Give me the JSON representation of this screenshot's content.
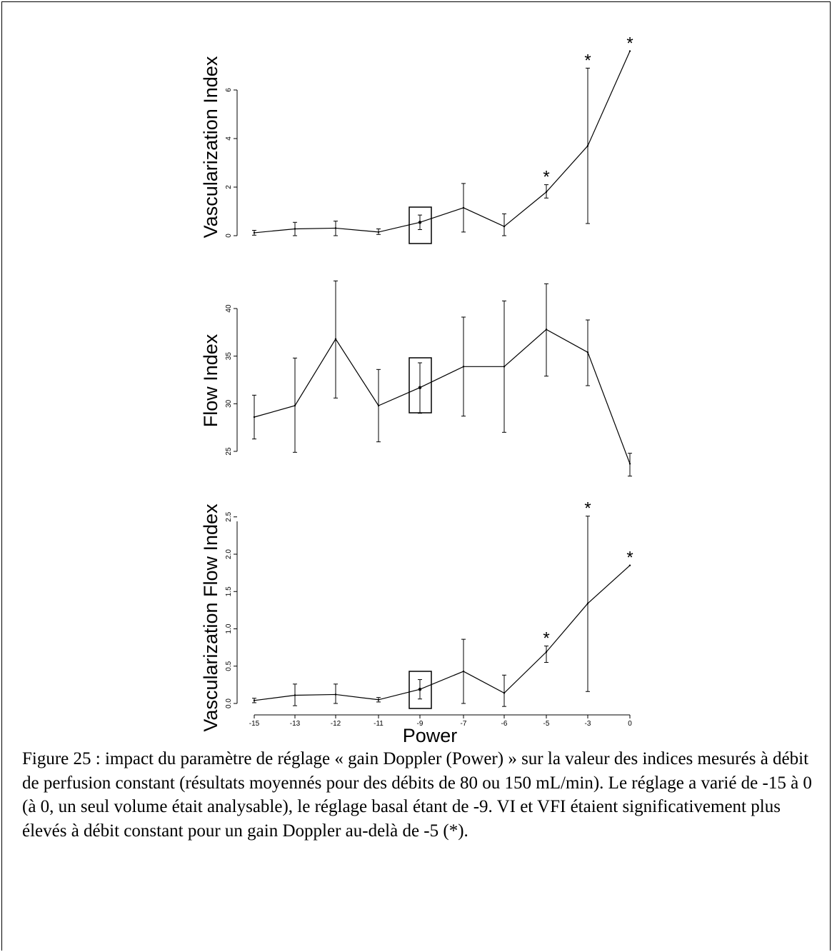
{
  "caption": "Figure 25 : impact du paramètre de réglage « gain Doppler (Power) » sur la valeur des indices mesurés à débit de perfusion constant (résultats moyennés pour des débits de 80 ou 150 mL/min).  Le réglage a varié de -15 à 0 (à 0, un seul volume était analysable), le réglage basal étant de -9. VI et VFI étaient significativement plus élevés à débit constant pour un gain Doppler au-delà de -5 (*).",
  "chart_data": [
    {
      "type": "line",
      "ylabel": "Vascularization Index",
      "categories": [
        "-15",
        "-13",
        "-12",
        "-11",
        "-9",
        "-7",
        "-6",
        "-5",
        "-3",
        "0"
      ],
      "values": [
        0.12,
        0.28,
        0.31,
        0.15,
        0.55,
        1.15,
        0.38,
        1.8,
        3.7,
        7.6
      ],
      "error_lower": [
        0.02,
        0.0,
        0.0,
        0.05,
        0.25,
        0.15,
        0.0,
        1.55,
        0.5,
        null
      ],
      "error_upper": [
        0.22,
        0.55,
        0.6,
        0.28,
        0.85,
        2.15,
        0.9,
        2.1,
        6.9,
        null
      ],
      "yticks": [
        0,
        2,
        4,
        6
      ],
      "ylim": [
        0,
        8
      ],
      "significant": [
        "-5",
        "-3",
        "0"
      ],
      "highlight": "-9"
    },
    {
      "type": "line",
      "ylabel": "Flow Index",
      "categories": [
        "-15",
        "-13",
        "-12",
        "-11",
        "-9",
        "-7",
        "-6",
        "-5",
        "-3",
        "0"
      ],
      "values": [
        28.6,
        29.8,
        36.8,
        29.8,
        31.7,
        33.9,
        33.9,
        37.8,
        35.4,
        23.7
      ],
      "error_lower": [
        26.3,
        24.9,
        30.6,
        26.0,
        29.0,
        28.7,
        27.0,
        32.9,
        31.9,
        22.4
      ],
      "error_upper": [
        30.9,
        34.8,
        42.9,
        33.6,
        34.3,
        39.1,
        40.8,
        42.6,
        38.8,
        24.8
      ],
      "yticks": [
        25,
        30,
        35,
        40
      ],
      "ylim": [
        22,
        44
      ],
      "significant": [],
      "highlight": "-9"
    },
    {
      "type": "line",
      "ylabel": "Vascularization Flow Index",
      "xlabel": "Power",
      "categories": [
        "-15",
        "-13",
        "-12",
        "-11",
        "-9",
        "-7",
        "-6",
        "-5",
        "-3",
        "0"
      ],
      "values": [
        0.04,
        0.11,
        0.12,
        0.05,
        0.19,
        0.43,
        0.14,
        0.69,
        1.34,
        1.85
      ],
      "error_lower": [
        0.01,
        -0.03,
        0.0,
        0.02,
        0.06,
        0.0,
        -0.04,
        0.55,
        0.16,
        null
      ],
      "error_upper": [
        0.07,
        0.26,
        0.26,
        0.08,
        0.32,
        0.86,
        0.38,
        0.77,
        2.51,
        null
      ],
      "yticks": [
        0.0,
        0.5,
        1.0,
        1.5,
        2.0,
        2.5
      ],
      "ylim": [
        -0.12,
        2.7
      ],
      "significant": [
        "-5",
        "-3",
        "0"
      ],
      "highlight": "-9"
    }
  ]
}
